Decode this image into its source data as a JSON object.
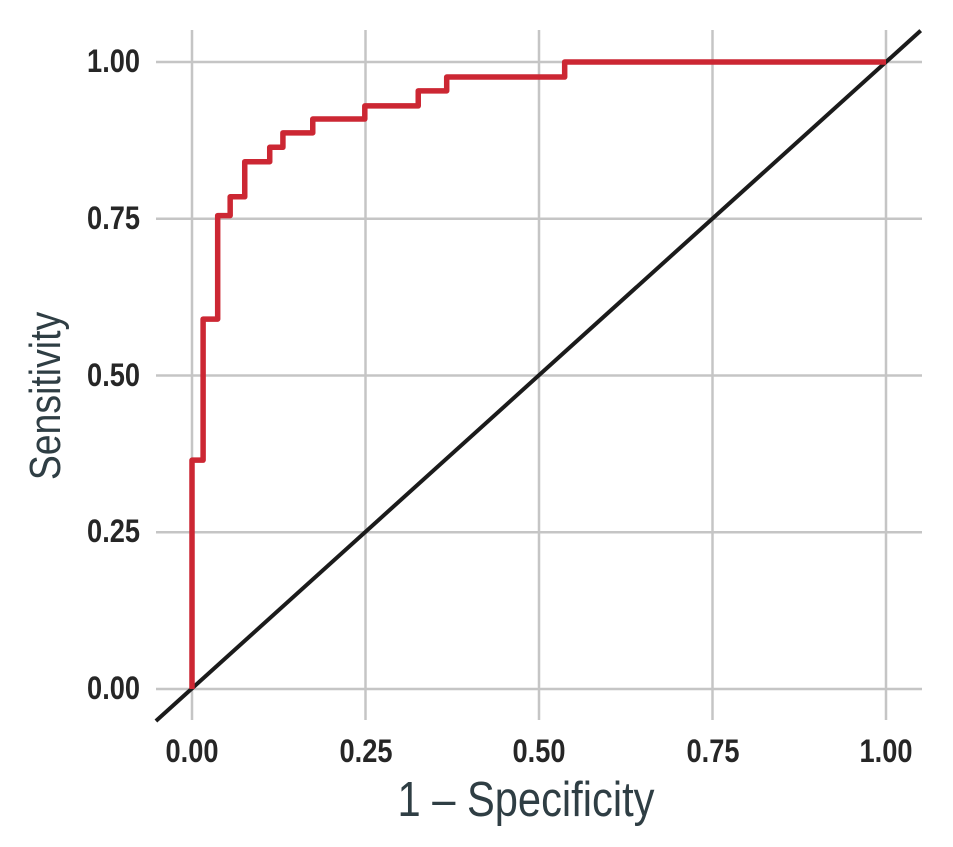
{
  "chart_data": {
    "type": "line",
    "subtype": "roc-curve",
    "title": "",
    "xlabel": "1 – Specificity",
    "ylabel": "Sensitivity",
    "xlim": [
      0,
      1
    ],
    "ylim": [
      0,
      1
    ],
    "grid": true,
    "legend": "none",
    "x_ticks": [
      "0.00",
      "0.25",
      "0.50",
      "0.75",
      "1.00"
    ],
    "y_ticks": [
      "0.00",
      "0.25",
      "0.50",
      "0.75",
      "1.00"
    ],
    "x_tick_values": [
      0,
      0.25,
      0.5,
      0.75,
      1
    ],
    "y_tick_values": [
      0,
      0.25,
      0.5,
      0.75,
      1
    ],
    "series": [
      {
        "name": "reference-diagonal",
        "style": "straight",
        "color": "#1b1b1b",
        "width": 4,
        "points": [
          [
            -0.052,
            -0.051
          ],
          [
            1.05,
            1.05
          ]
        ]
      },
      {
        "name": "roc-curve",
        "style": "step",
        "color": "#cc2733",
        "width": 5.5,
        "points": [
          [
            0,
            0
          ],
          [
            0,
            0.365
          ],
          [
            0.016,
            0.365
          ],
          [
            0.016,
            0.59
          ],
          [
            0.037,
            0.59
          ],
          [
            0.037,
            0.755
          ],
          [
            0.055,
            0.755
          ],
          [
            0.055,
            0.785
          ],
          [
            0.076,
            0.785
          ],
          [
            0.076,
            0.841
          ],
          [
            0.112,
            0.841
          ],
          [
            0.112,
            0.864
          ],
          [
            0.131,
            0.864
          ],
          [
            0.131,
            0.887
          ],
          [
            0.174,
            0.887
          ],
          [
            0.174,
            0.909
          ],
          [
            0.249,
            0.909
          ],
          [
            0.249,
            0.93
          ],
          [
            0.326,
            0.93
          ],
          [
            0.326,
            0.954
          ],
          [
            0.367,
            0.954
          ],
          [
            0.367,
            0.976
          ],
          [
            0.537,
            0.976
          ],
          [
            0.537,
            1.0
          ],
          [
            1.0,
            1.0
          ]
        ]
      }
    ]
  },
  "colors": {
    "background": "#ffffff",
    "grid": "#c5c5c5",
    "roc_curve": "#cc2733",
    "reference_line": "#1b1b1b",
    "axis_title_text": "#2f3e44",
    "tick_label_text": "#262626"
  }
}
